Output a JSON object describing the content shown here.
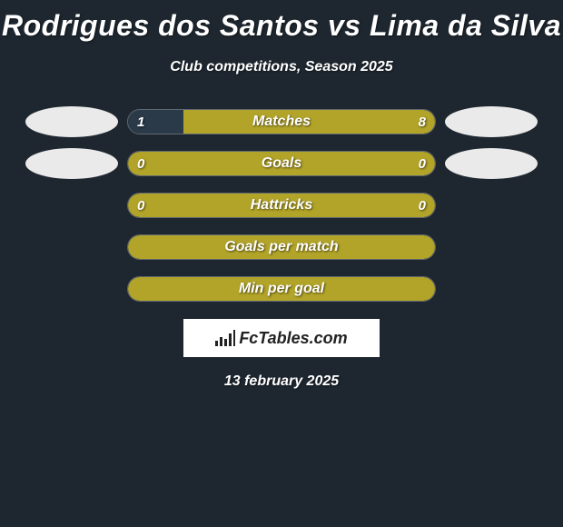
{
  "title": "Rodrigues dos Santos vs Lima da Silva",
  "subtitle": "Club competitions, Season 2025",
  "colors": {
    "background": "#1e2730",
    "bar_fill": "#b2a429",
    "bar_alt": "#2a3a49",
    "ellipse": "#eaeaea",
    "text": "#ffffff"
  },
  "rows": [
    {
      "label": "Matches",
      "left_value": "1",
      "right_value": "8",
      "left_pct": 18,
      "right_pct": 82,
      "left_color": "#2a3a49",
      "right_color": "#b2a429",
      "show_ellipses": true,
      "show_values": true,
      "ellipse_left_bg": "#eaeaea",
      "ellipse_right_bg": "#eaeaea"
    },
    {
      "label": "Goals",
      "left_value": "0",
      "right_value": "0",
      "left_pct": 0,
      "right_pct": 0,
      "full_fill": true,
      "full_color": "#b2a429",
      "show_ellipses": true,
      "show_values": true,
      "ellipse_left_bg": "#eaeaea",
      "ellipse_right_bg": "#eaeaea"
    },
    {
      "label": "Hattricks",
      "left_value": "0",
      "right_value": "0",
      "left_pct": 0,
      "right_pct": 0,
      "full_fill": true,
      "full_color": "#b2a429",
      "show_ellipses": false,
      "show_values": true
    },
    {
      "label": "Goals per match",
      "left_value": "",
      "right_value": "",
      "full_fill": true,
      "full_color": "#b2a429",
      "show_ellipses": false,
      "show_values": false
    },
    {
      "label": "Min per goal",
      "left_value": "",
      "right_value": "",
      "full_fill": true,
      "full_color": "#b2a429",
      "show_ellipses": false,
      "show_values": false
    }
  ],
  "branding": "FcTables.com",
  "date": "13 february 2025"
}
